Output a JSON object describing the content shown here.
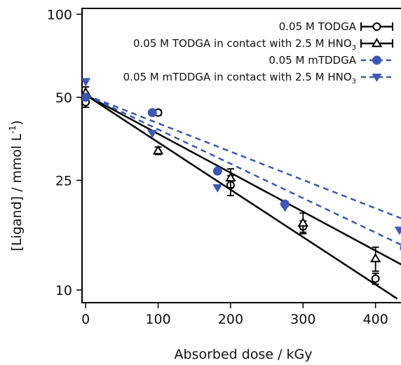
{
  "chart_data": {
    "type": "scatter",
    "xlabel": "Absorbed dose / kGy",
    "ylabel_main": "[Ligand]  / mmol L",
    "ylabel_sup": "-1",
    "ylabel_close": ")",
    "yscale": "log",
    "xlim": [
      -5,
      440
    ],
    "ylim": [
      9,
      105
    ],
    "xticks": [
      0,
      100,
      200,
      300,
      400
    ],
    "yticks": [
      10,
      25,
      50,
      100
    ],
    "legend_position": "top-right",
    "series": [
      {
        "name": "0.05 M TODGA",
        "name_sub": "",
        "marker": "circle",
        "color": "#000000",
        "line_style": "solid",
        "x": [
          0,
          100,
          200,
          300,
          400
        ],
        "y": [
          48,
          44,
          24,
          17,
          11
        ],
        "err": [
          2,
          1,
          2,
          0.8,
          0.5
        ],
        "fit": [
          [
            0,
            51
          ],
          [
            430,
            9.3
          ]
        ]
      },
      {
        "name": "0.05 M TODGA in contact with 2.5 M HNO",
        "name_sub": "3",
        "marker": "triangle",
        "color": "#000000",
        "line_style": "solid",
        "x": [
          0,
          100,
          200,
          300,
          400
        ],
        "y": [
          52,
          32,
          25.5,
          17.5,
          13
        ],
        "err": [
          2.5,
          1,
          2,
          1.5,
          1.3
        ],
        "fit": [
          [
            0,
            51
          ],
          [
            440,
            12.2
          ]
        ]
      },
      {
        "name": "0.05 M mTDDGA",
        "name_sub": "",
        "marker": "filled-circle",
        "color": "#3e57b2",
        "line_style": "dashed",
        "x": [
          0,
          92,
          182,
          275,
          440
        ],
        "y": [
          50,
          44,
          27,
          20.5,
          14.2
        ],
        "err": [],
        "fit": [
          [
            0,
            51
          ],
          [
            440,
            14.4
          ]
        ]
      },
      {
        "name": "0.05 M mTDDGA in contact with 2.5 M HNO",
        "name_sub": "3",
        "marker": "filled-triangle-down",
        "color": "#3e57b2",
        "line_style": "dashed",
        "x": [
          0,
          92,
          182,
          275,
          433
        ],
        "y": [
          57,
          37,
          23.5,
          20,
          16.5
        ],
        "err": [],
        "fit": [
          [
            0,
            51
          ],
          [
            440,
            18
          ]
        ]
      }
    ]
  }
}
